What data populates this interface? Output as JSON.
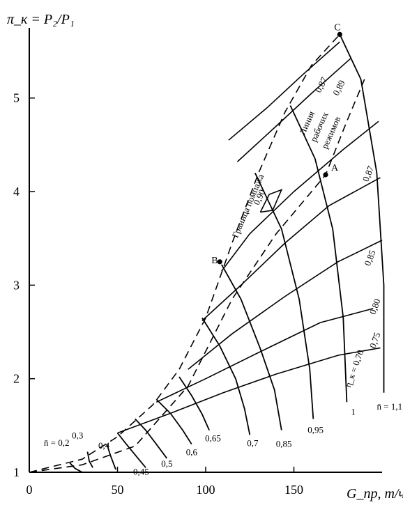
{
  "chart_data": {
    "type": "line",
    "title": "",
    "ylabel": "π_к = P₂/P₁",
    "xlabel": "G_пр, т/ч",
    "x_ticks": [
      "0",
      "50",
      "100",
      "150"
    ],
    "y_ticks": [
      "1",
      "2",
      "3",
      "4",
      "5"
    ],
    "xlim": [
      0,
      200
    ],
    "ylim": [
      1,
      5.75
    ],
    "surge_label": "Граница помпажа",
    "operating_label": [
      "Линия",
      "рабочих",
      "режимов"
    ],
    "points": [
      {
        "name": "A",
        "x": 168,
        "y": 4.18
      },
      {
        "name": "B",
        "x": 108,
        "y": 3.25
      },
      {
        "name": "C",
        "x": 176,
        "y": 5.68
      }
    ],
    "surge_line": [
      [
        0,
        1.0
      ],
      [
        30,
        1.14
      ],
      [
        50,
        1.38
      ],
      [
        70,
        1.72
      ],
      [
        85,
        2.1
      ],
      [
        100,
        2.65
      ],
      [
        115,
        3.45
      ],
      [
        130,
        4.2
      ],
      [
        145,
        4.85
      ],
      [
        160,
        5.35
      ],
      [
        176,
        5.68
      ]
    ],
    "operating_line": [
      [
        0,
        1.0
      ],
      [
        30,
        1.08
      ],
      [
        60,
        1.28
      ],
      [
        90,
        1.92
      ],
      [
        115,
        2.85
      ],
      [
        140,
        3.55
      ],
      [
        160,
        4.0
      ],
      [
        168,
        4.18
      ],
      [
        180,
        4.75
      ],
      [
        190,
        5.2
      ]
    ],
    "speed_lines": [
      {
        "label": "n̄ = 0,2",
        "points": [
          [
            23,
            1.1
          ],
          [
            26,
            1.04
          ],
          [
            30,
            1.0
          ]
        ]
      },
      {
        "label": "0,3",
        "points": [
          [
            33,
            1.22
          ],
          [
            34,
            1.12
          ],
          [
            36,
            1.05
          ]
        ]
      },
      {
        "label": "0,4",
        "points": [
          [
            44,
            1.3
          ],
          [
            46,
            1.18
          ],
          [
            49,
            1.03
          ]
        ]
      },
      {
        "label": "0,45",
        "points": [
          [
            50,
            1.42
          ],
          [
            55,
            1.3
          ],
          [
            62,
            1.14
          ],
          [
            66,
            1.05
          ]
        ]
      },
      {
        "label": "0,5",
        "points": [
          [
            60,
            1.57
          ],
          [
            66,
            1.45
          ],
          [
            72,
            1.3
          ],
          [
            78,
            1.15
          ]
        ]
      },
      {
        "label": "0,6",
        "points": [
          [
            72,
            1.78
          ],
          [
            80,
            1.63
          ],
          [
            87,
            1.45
          ],
          [
            92,
            1.3
          ]
        ]
      },
      {
        "label": "0,65",
        "points": [
          [
            85,
            2.02
          ],
          [
            92,
            1.82
          ],
          [
            98,
            1.62
          ],
          [
            102,
            1.45
          ]
        ]
      },
      {
        "label": "0,7",
        "points": [
          [
            98,
            2.65
          ],
          [
            108,
            2.35
          ],
          [
            117,
            2.0
          ],
          [
            122,
            1.68
          ],
          [
            125,
            1.4
          ]
        ]
      },
      {
        "label": "0,85",
        "points": [
          [
            109,
            3.22
          ],
          [
            120,
            2.85
          ],
          [
            131,
            2.32
          ],
          [
            139,
            1.88
          ],
          [
            143,
            1.45
          ]
        ]
      },
      {
        "label": "0,95",
        "points": [
          [
            128,
            4.2
          ],
          [
            143,
            3.6
          ],
          [
            153,
            2.85
          ],
          [
            159,
            2.1
          ],
          [
            161,
            1.57
          ]
        ]
      },
      {
        "label": "1",
        "points": [
          [
            148,
            4.92
          ],
          [
            162,
            4.35
          ],
          [
            172,
            3.6
          ],
          [
            178,
            2.65
          ],
          [
            180,
            1.75
          ]
        ]
      },
      {
        "label": "n̄ = 1,1",
        "points": [
          [
            176,
            5.68
          ],
          [
            188,
            5.2
          ],
          [
            197,
            4.2
          ],
          [
            201,
            3.0
          ],
          [
            201,
            1.85
          ]
        ]
      }
    ],
    "efficiency_lines": [
      {
        "label": "0,87",
        "points": [
          [
            113,
            4.55
          ],
          [
            135,
            4.9
          ],
          [
            155,
            5.25
          ],
          [
            176,
            5.6
          ]
        ]
      },
      {
        "label": "0,89",
        "points": [
          [
            118,
            4.32
          ],
          [
            140,
            4.7
          ],
          [
            160,
            5.05
          ],
          [
            182,
            5.42
          ]
        ]
      },
      {
        "label": "0,90",
        "points": [
          [
            131,
            3.78
          ],
          [
            136,
            3.97
          ],
          [
            143,
            4.02
          ],
          [
            138,
            3.8
          ],
          [
            131,
            3.78
          ]
        ]
      },
      {
        "label": "0,87",
        "points": [
          [
            109,
            3.15
          ],
          [
            125,
            3.55
          ],
          [
            150,
            4.0
          ],
          [
            178,
            4.45
          ],
          [
            198,
            4.75
          ]
        ]
      },
      {
        "label": "0,85",
        "points": [
          [
            98,
            2.62
          ],
          [
            120,
            3.0
          ],
          [
            145,
            3.45
          ],
          [
            170,
            3.85
          ],
          [
            199,
            4.15
          ]
        ]
      },
      {
        "label": "0,80",
        "points": [
          [
            90,
            2.1
          ],
          [
            115,
            2.48
          ],
          [
            145,
            2.88
          ],
          [
            175,
            3.25
          ],
          [
            200,
            3.48
          ]
        ]
      },
      {
        "label": "0,75",
        "points": [
          [
            72,
            1.75
          ],
          [
            100,
            2.0
          ],
          [
            130,
            2.28
          ],
          [
            165,
            2.6
          ],
          [
            195,
            2.75
          ]
        ]
      },
      {
        "label": "η_к = 0,70",
        "points": [
          [
            50,
            1.42
          ],
          [
            80,
            1.63
          ],
          [
            110,
            1.85
          ],
          [
            140,
            2.05
          ],
          [
            175,
            2.25
          ],
          [
            199,
            2.33
          ]
        ]
      }
    ],
    "grid": false,
    "legend": "none"
  }
}
